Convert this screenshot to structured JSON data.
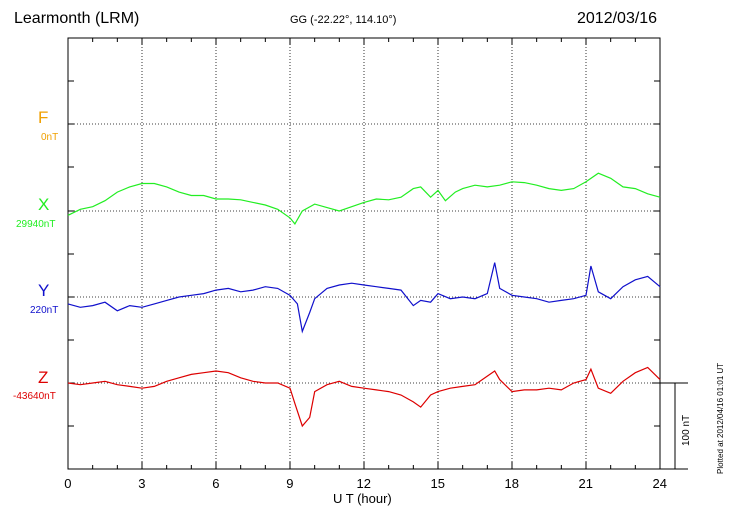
{
  "header": {
    "station": "Learmonth (LRM)",
    "coords": "GG (-22.22°, 114.10°)",
    "date": "2012/03/16"
  },
  "plotted": "Plotted at 2012/04/16 01:01  UT",
  "scale_label": "100 nT",
  "colors": {
    "F": "#f0a000",
    "X": "#22ee22",
    "Y": "#1010cc",
    "Z": "#dd0000"
  },
  "chart_data": {
    "type": "line",
    "title": "Learmonth (LRM)",
    "xlabel": "U T (hour)",
    "ylabel": "",
    "xlim": [
      0,
      24
    ],
    "x_ticks": [
      "0",
      "3",
      "6",
      "9",
      "12",
      "15",
      "18",
      "21",
      "24"
    ],
    "grid": true,
    "scale_bar_nT": 100,
    "series": [
      {
        "name": "F",
        "baseline_label": "0nT",
        "x": [],
        "values": []
      },
      {
        "name": "X",
        "baseline_label": "29940nT",
        "x": [
          0,
          0.5,
          1,
          1.5,
          2,
          2.5,
          3,
          3.5,
          4,
          4.5,
          5,
          5.5,
          6,
          6.5,
          7,
          7.5,
          8,
          8.5,
          9,
          9.2,
          9.5,
          10,
          10.5,
          11,
          11.5,
          12,
          12.5,
          13,
          13.5,
          14,
          14.3,
          14.7,
          15,
          15.3,
          15.7,
          16,
          16.5,
          17,
          17.5,
          18,
          18.5,
          19,
          19.5,
          20,
          20.5,
          21,
          21.5,
          22,
          22.5,
          23,
          23.5,
          24
        ],
        "values": [
          -5,
          2,
          5,
          12,
          22,
          28,
          32,
          32,
          28,
          22,
          18,
          18,
          14,
          14,
          13,
          10,
          7,
          2,
          -8,
          -15,
          0,
          8,
          4,
          0,
          5,
          10,
          14,
          13,
          16,
          26,
          28,
          16,
          24,
          12,
          22,
          26,
          30,
          28,
          30,
          34,
          33,
          30,
          26,
          24,
          26,
          34,
          44,
          38,
          28,
          26,
          20,
          16
        ]
      },
      {
        "name": "Y",
        "baseline_label": "220nT",
        "x": [
          0,
          0.5,
          1,
          1.5,
          2,
          2.5,
          3,
          3.5,
          4,
          4.5,
          5,
          5.5,
          6,
          6.5,
          7,
          7.5,
          8,
          8.5,
          9,
          9.3,
          9.5,
          9.8,
          10,
          10.5,
          11,
          11.5,
          12,
          12.5,
          13,
          13.5,
          14,
          14.3,
          14.7,
          15,
          15.5,
          16,
          16.5,
          17,
          17.3,
          17.5,
          18,
          18.5,
          19,
          19.5,
          20,
          20.5,
          21,
          21.2,
          21.5,
          22,
          22.5,
          23,
          23.5,
          24
        ],
        "values": [
          -8,
          -12,
          -10,
          -6,
          -16,
          -10,
          -12,
          -8,
          -4,
          0,
          2,
          4,
          8,
          10,
          6,
          8,
          12,
          10,
          2,
          -8,
          -40,
          -18,
          -2,
          10,
          14,
          16,
          14,
          12,
          10,
          8,
          -10,
          -4,
          -6,
          4,
          -2,
          0,
          -2,
          4,
          40,
          10,
          2,
          0,
          -2,
          -6,
          -4,
          -2,
          2,
          36,
          6,
          -2,
          12,
          20,
          24,
          12
        ]
      },
      {
        "name": "Z",
        "baseline_label": "-43640nT",
        "x": [
          0,
          0.5,
          1,
          1.5,
          2,
          2.5,
          3,
          3.5,
          4,
          4.5,
          5,
          5.5,
          6,
          6.5,
          7,
          7.5,
          8,
          8.5,
          9,
          9.2,
          9.5,
          9.8,
          10,
          10.5,
          11,
          11.5,
          12,
          12.5,
          13,
          13.5,
          14,
          14.3,
          14.7,
          15,
          15.5,
          16,
          16.5,
          17,
          17.3,
          17.5,
          18,
          18.5,
          19,
          19.5,
          20,
          20.5,
          21,
          21.2,
          21.5,
          22,
          22.5,
          23,
          23.5,
          24
        ],
        "values": [
          0,
          -2,
          0,
          2,
          -2,
          -4,
          -6,
          -4,
          2,
          6,
          10,
          12,
          14,
          12,
          6,
          2,
          0,
          0,
          -6,
          -24,
          -50,
          -40,
          -10,
          -2,
          2,
          -4,
          -6,
          -8,
          -10,
          -14,
          -22,
          -28,
          -14,
          -10,
          -6,
          -4,
          -2,
          8,
          14,
          4,
          -10,
          -8,
          -8,
          -6,
          -8,
          0,
          4,
          16,
          -6,
          -12,
          2,
          12,
          18,
          4
        ]
      }
    ]
  }
}
